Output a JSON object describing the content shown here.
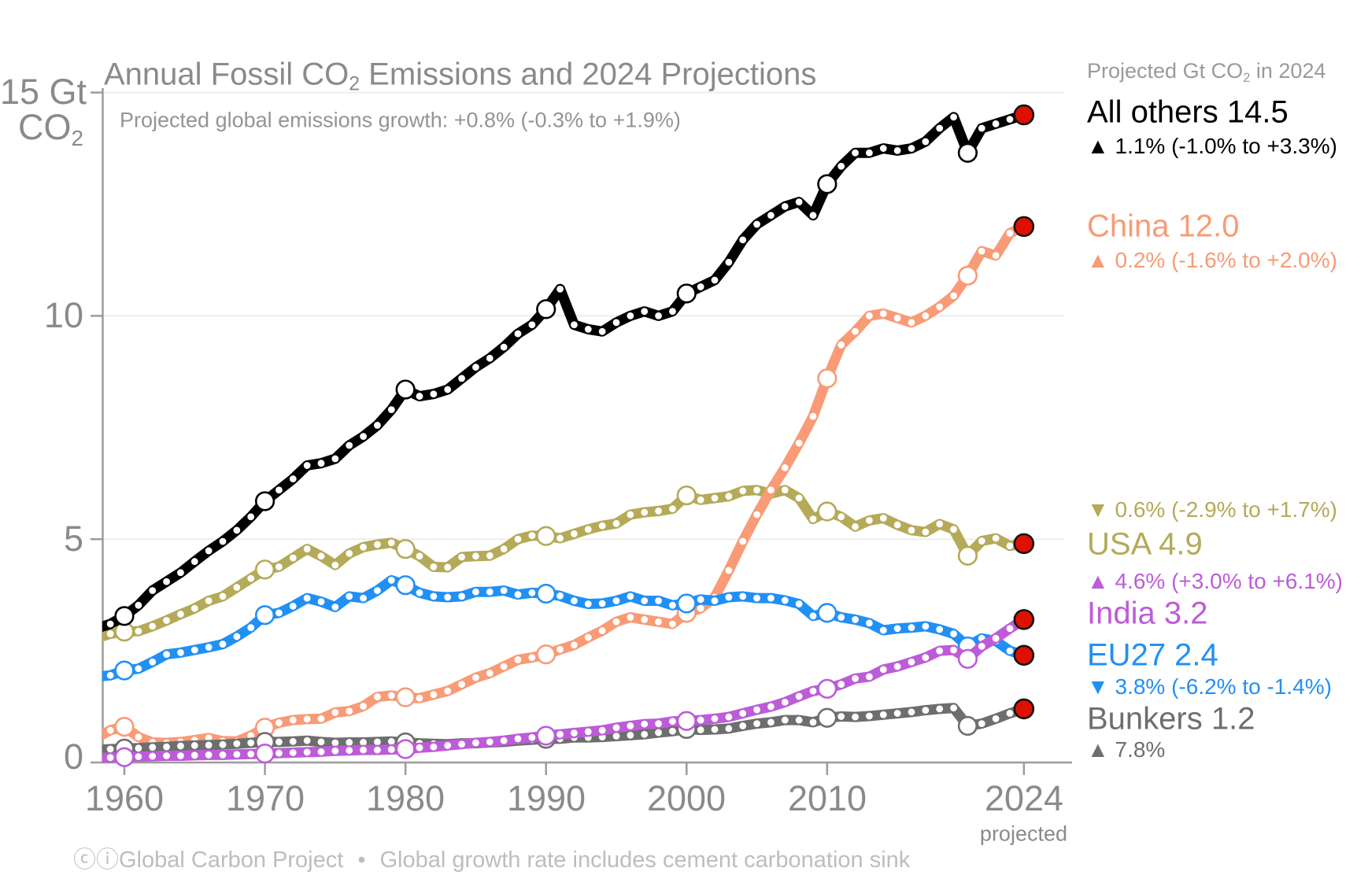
{
  "chart_data": {
    "type": "line",
    "title_pre": "Annual Fossil CO",
    "title_sub": "2",
    "title_post": " Emissions and 2024 Projections",
    "subtitle": "Projected global emissions growth: +0.8% (-0.3% to +1.9%)",
    "legend_header_pre": "Projected Gt CO",
    "legend_header_sub": "2",
    "legend_header_post": " in 2024",
    "endpoint_color": "#e01000",
    "year_start": 1958,
    "year_end": 2024,
    "decade_marker_years": [
      1960,
      1970,
      1980,
      1990,
      2000,
      2010,
      2020
    ],
    "y_axis": {
      "unit_line1": "15 Gt",
      "unit_line2_pre": "CO",
      "unit_line2_sub": "2",
      "tick_labels": [
        "10",
        "5",
        "0"
      ],
      "tick_values": [
        0,
        5,
        10,
        15
      ],
      "gridline_values": [
        5,
        10,
        15
      ],
      "max": 15
    },
    "x_axis": {
      "tick_labels": [
        "1960",
        "1970",
        "1980",
        "1990",
        "2000",
        "2010",
        "2024"
      ],
      "tick_years": [
        1960,
        1970,
        1980,
        1990,
        2000,
        2010,
        2024
      ],
      "note": "projected"
    },
    "series": [
      {
        "name": "All others",
        "legend_label": "All others 14.5",
        "change_label": "▲ 1.1% (-1.0% to +3.3%)",
        "color": "#000000",
        "projected_2024": 14.5,
        "values": [
          3.0,
          3.1,
          3.28,
          3.52,
          3.85,
          4.05,
          4.25,
          4.5,
          4.74,
          4.95,
          5.2,
          5.5,
          5.85,
          6.1,
          6.35,
          6.65,
          6.7,
          6.8,
          7.1,
          7.3,
          7.55,
          7.9,
          8.35,
          8.2,
          8.25,
          8.35,
          8.6,
          8.85,
          9.05,
          9.3,
          9.6,
          9.8,
          10.15,
          10.6,
          9.8,
          9.7,
          9.65,
          9.85,
          10.0,
          10.1,
          10.0,
          10.1,
          10.5,
          10.65,
          10.8,
          11.2,
          11.7,
          12.05,
          12.25,
          12.45,
          12.55,
          12.25,
          12.95,
          13.35,
          13.65,
          13.65,
          13.75,
          13.7,
          13.75,
          13.9,
          14.2,
          14.45,
          13.65,
          14.2,
          14.3,
          14.4,
          14.5
        ]
      },
      {
        "name": "China",
        "legend_label": "China 12.0",
        "change_label": "▲ 0.2% (-1.6% to +2.0%)",
        "color": "#f89b76",
        "projected_2024": 12.0,
        "values": [
          0.55,
          0.72,
          0.8,
          0.57,
          0.45,
          0.44,
          0.46,
          0.5,
          0.55,
          0.48,
          0.47,
          0.6,
          0.78,
          0.89,
          0.95,
          0.97,
          0.98,
          1.12,
          1.15,
          1.26,
          1.47,
          1.5,
          1.46,
          1.44,
          1.52,
          1.6,
          1.75,
          1.9,
          2.0,
          2.15,
          2.3,
          2.35,
          2.42,
          2.53,
          2.63,
          2.8,
          2.95,
          3.15,
          3.25,
          3.2,
          3.15,
          3.1,
          3.35,
          3.45,
          3.7,
          4.3,
          4.95,
          5.55,
          6.1,
          6.6,
          7.15,
          7.75,
          8.6,
          9.35,
          9.65,
          10.0,
          10.05,
          9.95,
          9.85,
          10.0,
          10.2,
          10.45,
          10.9,
          11.45,
          11.35,
          11.85,
          12.0
        ]
      },
      {
        "name": "USA",
        "legend_label": "USA 4.9",
        "change_label": "▼ 0.6% (-2.9% to +1.7%)",
        "color": "#b4aa58",
        "projected_2024": 4.9,
        "values": [
          2.78,
          2.88,
          2.93,
          2.94,
          3.05,
          3.18,
          3.32,
          3.45,
          3.62,
          3.72,
          3.92,
          4.12,
          4.32,
          4.38,
          4.58,
          4.78,
          4.62,
          4.42,
          4.68,
          4.82,
          4.88,
          4.92,
          4.78,
          4.62,
          4.38,
          4.37,
          4.6,
          4.62,
          4.63,
          4.78,
          5.0,
          5.08,
          5.07,
          5.02,
          5.12,
          5.22,
          5.3,
          5.35,
          5.55,
          5.6,
          5.63,
          5.68,
          5.98,
          5.88,
          5.92,
          5.96,
          6.08,
          6.1,
          6.02,
          6.1,
          5.92,
          5.45,
          5.62,
          5.5,
          5.28,
          5.42,
          5.47,
          5.32,
          5.2,
          5.16,
          5.34,
          5.22,
          4.63,
          4.96,
          5.02,
          4.85,
          4.9
        ]
      },
      {
        "name": "India",
        "legend_label": "India 3.2",
        "change_label": "▲ 4.6% (+3.0% to +6.1%)",
        "color": "#bd5cd8",
        "projected_2024": 3.2,
        "values": [
          0.1,
          0.11,
          0.12,
          0.13,
          0.14,
          0.15,
          0.15,
          0.16,
          0.17,
          0.17,
          0.18,
          0.19,
          0.2,
          0.21,
          0.22,
          0.23,
          0.24,
          0.26,
          0.27,
          0.28,
          0.28,
          0.29,
          0.3,
          0.33,
          0.35,
          0.38,
          0.41,
          0.44,
          0.46,
          0.49,
          0.53,
          0.56,
          0.6,
          0.63,
          0.66,
          0.69,
          0.72,
          0.78,
          0.82,
          0.86,
          0.87,
          0.92,
          0.93,
          0.95,
          0.98,
          1.02,
          1.1,
          1.18,
          1.25,
          1.35,
          1.48,
          1.6,
          1.65,
          1.75,
          1.88,
          1.92,
          2.08,
          2.15,
          2.25,
          2.35,
          2.5,
          2.52,
          2.32,
          2.6,
          2.78,
          3.0,
          3.2
        ]
      },
      {
        "name": "EU27",
        "legend_label": "EU27 2.4",
        "change_label": "▼ 3.8% (-6.2% to -1.4%)",
        "color": "#2190f5",
        "projected_2024": 2.4,
        "values": [
          1.92,
          1.95,
          2.06,
          2.1,
          2.25,
          2.42,
          2.46,
          2.52,
          2.58,
          2.65,
          2.82,
          3.02,
          3.3,
          3.35,
          3.5,
          3.68,
          3.6,
          3.48,
          3.72,
          3.68,
          3.85,
          4.08,
          3.97,
          3.8,
          3.72,
          3.7,
          3.72,
          3.82,
          3.82,
          3.85,
          3.76,
          3.8,
          3.78,
          3.73,
          3.62,
          3.55,
          3.56,
          3.62,
          3.72,
          3.62,
          3.62,
          3.52,
          3.56,
          3.65,
          3.62,
          3.7,
          3.72,
          3.68,
          3.68,
          3.63,
          3.55,
          3.28,
          3.35,
          3.25,
          3.2,
          3.12,
          2.96,
          3.0,
          3.02,
          3.05,
          2.98,
          2.88,
          2.6,
          2.78,
          2.72,
          2.5,
          2.4
        ]
      },
      {
        "name": "Bunkers",
        "legend_label": "Bunkers 1.2",
        "change_label": "▲ 7.8%",
        "color": "#6e6e6e",
        "projected_2024": 1.2,
        "values": [
          0.28,
          0.3,
          0.31,
          0.32,
          0.34,
          0.35,
          0.37,
          0.38,
          0.39,
          0.4,
          0.42,
          0.44,
          0.46,
          0.46,
          0.47,
          0.49,
          0.46,
          0.44,
          0.45,
          0.45,
          0.46,
          0.47,
          0.45,
          0.43,
          0.42,
          0.41,
          0.43,
          0.43,
          0.45,
          0.46,
          0.49,
          0.51,
          0.53,
          0.53,
          0.56,
          0.56,
          0.57,
          0.59,
          0.61,
          0.63,
          0.67,
          0.7,
          0.75,
          0.73,
          0.74,
          0.76,
          0.82,
          0.87,
          0.9,
          0.95,
          0.95,
          0.9,
          1.0,
          1.03,
          1.02,
          1.04,
          1.07,
          1.1,
          1.13,
          1.17,
          1.2,
          1.22,
          0.82,
          0.87,
          0.98,
          1.1,
          1.2
        ]
      }
    ]
  },
  "footer": {
    "credit": "ⓒⓘGlobal Carbon Project",
    "bullet": "•",
    "note": "Global growth rate includes cement carbonation sink"
  }
}
